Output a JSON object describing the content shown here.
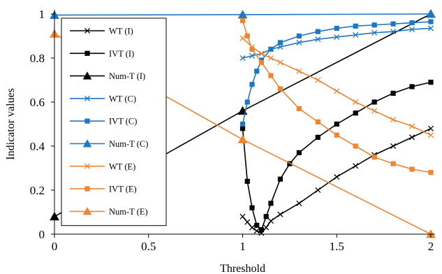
{
  "chart_data": {
    "type": "line",
    "xlabel": "Threshold",
    "ylabel": "Indicator values",
    "xlim": [
      0,
      2
    ],
    "ylim": [
      0,
      1
    ],
    "x_ticks": [
      "0",
      "0.5",
      "1",
      "1.5",
      "2"
    ],
    "x_tick_values": [
      0,
      0.5,
      1,
      1.5,
      2
    ],
    "y_ticks": [
      "0",
      "0.2",
      "0.4",
      "0.6",
      "0.8",
      "1"
    ],
    "y_tick_values": [
      0,
      0.2,
      0.4,
      0.6,
      0.8,
      1
    ],
    "grid": false,
    "legend_position": "top-left",
    "series": [
      {
        "name": "WT (I)",
        "color": "#000000",
        "marker": "x",
        "x": [
          1.0,
          1.025,
          1.05,
          1.075,
          1.1,
          1.125,
          1.15,
          1.2,
          1.3,
          1.4,
          1.5,
          1.6,
          1.7,
          1.8,
          1.9,
          2.0
        ],
        "y": [
          0.08,
          0.055,
          0.03,
          0.015,
          0.005,
          0.03,
          0.06,
          0.09,
          0.14,
          0.2,
          0.26,
          0.31,
          0.36,
          0.4,
          0.44,
          0.48
        ]
      },
      {
        "name": "IVT (I)",
        "color": "#000000",
        "marker": "square",
        "x": [
          1.0,
          1.025,
          1.05,
          1.075,
          1.1,
          1.125,
          1.15,
          1.2,
          1.25,
          1.3,
          1.4,
          1.5,
          1.6,
          1.7,
          1.8,
          1.9,
          2.0
        ],
        "y": [
          0.48,
          0.24,
          0.12,
          0.04,
          0.02,
          0.08,
          0.14,
          0.25,
          0.32,
          0.37,
          0.44,
          0.5,
          0.55,
          0.6,
          0.64,
          0.67,
          0.69
        ]
      },
      {
        "name": "Num-T (I)",
        "color": "#000000",
        "marker": "triangle",
        "x": [
          0,
          1,
          2
        ],
        "y": [
          0.08,
          0.56,
          1.0
        ]
      },
      {
        "name": "WT (C)",
        "color": "#1f77c4",
        "marker": "x",
        "x": [
          1.0,
          1.05,
          1.1,
          1.15,
          1.2,
          1.3,
          1.4,
          1.5,
          1.6,
          1.7,
          1.8,
          1.9,
          2.0
        ],
        "y": [
          0.8,
          0.81,
          0.82,
          0.84,
          0.85,
          0.87,
          0.885,
          0.895,
          0.905,
          0.915,
          0.92,
          0.93,
          0.935
        ]
      },
      {
        "name": "IVT (C)",
        "color": "#1f77c4",
        "marker": "square",
        "x": [
          1.0,
          1.025,
          1.05,
          1.075,
          1.1,
          1.15,
          1.2,
          1.3,
          1.4,
          1.5,
          1.6,
          1.7,
          1.8,
          1.9,
          2.0
        ],
        "y": [
          0.5,
          0.6,
          0.68,
          0.74,
          0.79,
          0.84,
          0.87,
          0.9,
          0.92,
          0.935,
          0.945,
          0.95,
          0.955,
          0.96,
          0.965
        ]
      },
      {
        "name": "Num-T (C)",
        "color": "#1f77c4",
        "marker": "triangle",
        "x": [
          0,
          1,
          2
        ],
        "y": [
          0.995,
          0.997,
          1.0
        ]
      },
      {
        "name": "WT (E)",
        "color": "#ee8533",
        "marker": "x",
        "x": [
          1.0,
          1.05,
          1.1,
          1.15,
          1.2,
          1.3,
          1.4,
          1.5,
          1.6,
          1.7,
          1.8,
          1.9,
          2.0
        ],
        "y": [
          0.89,
          0.85,
          0.82,
          0.8,
          0.78,
          0.74,
          0.7,
          0.65,
          0.6,
          0.56,
          0.52,
          0.49,
          0.45
        ]
      },
      {
        "name": "IVT (E)",
        "color": "#ee8533",
        "marker": "square",
        "x": [
          1.0,
          1.025,
          1.05,
          1.1,
          1.15,
          1.2,
          1.3,
          1.4,
          1.5,
          1.6,
          1.7,
          1.8,
          1.9,
          2.0
        ],
        "y": [
          0.97,
          0.9,
          0.84,
          0.78,
          0.72,
          0.66,
          0.57,
          0.51,
          0.45,
          0.4,
          0.35,
          0.32,
          0.295,
          0.28
        ]
      },
      {
        "name": "Num-T (E)",
        "color": "#ee8533",
        "marker": "triangle",
        "x": [
          0,
          1,
          2
        ],
        "y": [
          0.91,
          0.43,
          0.0
        ]
      }
    ]
  }
}
